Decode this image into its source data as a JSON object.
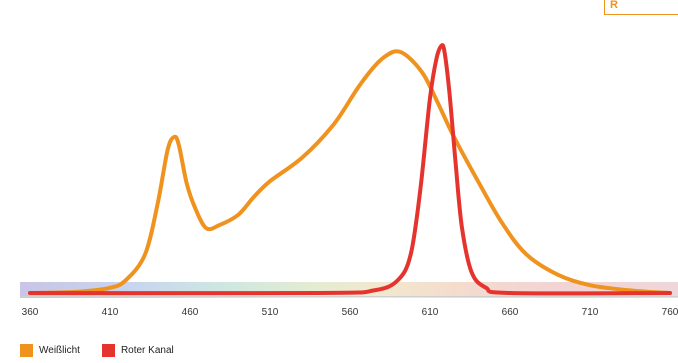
{
  "badge_text": "R",
  "chart_data": {
    "type": "line",
    "title": "",
    "xlabel": "",
    "ylabel": "",
    "xlim": [
      360,
      760
    ],
    "ylim": [
      0,
      1
    ],
    "grid": false,
    "legend_placement": "bottom-left",
    "x_ticks": [
      "360",
      "410",
      "460",
      "510",
      "560",
      "610",
      "660",
      "710",
      "760"
    ],
    "series": [
      {
        "name": "Weißlicht",
        "color": "#f0921e",
        "points": [
          [
            360,
            0.0
          ],
          [
            390,
            0.005
          ],
          [
            410,
            0.02
          ],
          [
            420,
            0.05
          ],
          [
            432,
            0.15
          ],
          [
            440,
            0.35
          ],
          [
            446,
            0.55
          ],
          [
            450,
            0.6
          ],
          [
            453,
            0.57
          ],
          [
            458,
            0.42
          ],
          [
            463,
            0.33
          ],
          [
            470,
            0.25
          ],
          [
            478,
            0.26
          ],
          [
            490,
            0.3
          ],
          [
            500,
            0.37
          ],
          [
            510,
            0.43
          ],
          [
            530,
            0.52
          ],
          [
            550,
            0.65
          ],
          [
            565,
            0.79
          ],
          [
            575,
            0.87
          ],
          [
            582,
            0.91
          ],
          [
            589,
            0.93
          ],
          [
            596,
            0.91
          ],
          [
            606,
            0.84
          ],
          [
            615,
            0.73
          ],
          [
            625,
            0.6
          ],
          [
            640,
            0.43
          ],
          [
            655,
            0.27
          ],
          [
            670,
            0.15
          ],
          [
            690,
            0.07
          ],
          [
            710,
            0.03
          ],
          [
            735,
            0.01
          ],
          [
            760,
            0.0
          ]
        ]
      },
      {
        "name": "Roter Kanal",
        "color": "#e5342e",
        "points": [
          [
            360,
            0.0
          ],
          [
            540,
            0.0
          ],
          [
            575,
            0.01
          ],
          [
            590,
            0.05
          ],
          [
            598,
            0.15
          ],
          [
            604,
            0.4
          ],
          [
            610,
            0.75
          ],
          [
            614,
            0.9
          ],
          [
            617,
            0.95
          ],
          [
            619,
            0.93
          ],
          [
            622,
            0.78
          ],
          [
            626,
            0.5
          ],
          [
            630,
            0.25
          ],
          [
            636,
            0.08
          ],
          [
            645,
            0.02
          ],
          [
            660,
            0.0
          ],
          [
            760,
            0.0
          ]
        ]
      }
    ]
  }
}
